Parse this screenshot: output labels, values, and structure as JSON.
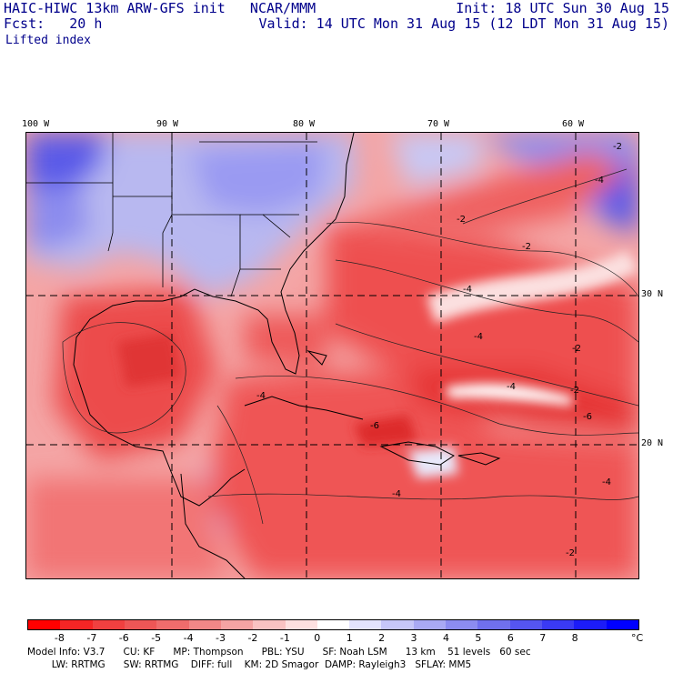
{
  "header": {
    "line1_left": "HAIC-HIWC 13km ARW-GFS init   NCAR/MMM",
    "line1_right": "Init: 18 UTC Sun 30 Aug 15",
    "line2_left": "Fcst:   20 h",
    "line2_right": "Valid: 14 UTC Mon 31 Aug 15 (12 LDT Mon 31 Aug 15)",
    "field": "Lifted index"
  },
  "map": {
    "lon_labels": [
      "100 W",
      "90 W",
      "80 W",
      "70 W",
      "60 W"
    ],
    "lat_labels": [
      "30 N",
      "20 N"
    ],
    "contour_labels": [
      "-2",
      "-2",
      "-4",
      "-2",
      "-4",
      "-4",
      "-6",
      "-4",
      "-2",
      "-4",
      "-6",
      "-4",
      "-2",
      "-4",
      "-2"
    ]
  },
  "colorbar": {
    "colors": [
      "#ff0000",
      "#f52525",
      "#f04040",
      "#ee5656",
      "#ef6c6c",
      "#f28787",
      "#f5a3a3",
      "#f9c2c2",
      "#fde0e0",
      "#ffffff",
      "#e3e3fd",
      "#c6c6f9",
      "#a9a9f4",
      "#8c8cf0",
      "#7070ee",
      "#5555f0",
      "#3a3af4",
      "#1c1cf8",
      "#0000ff"
    ],
    "ticks": [
      "-8",
      "-7",
      "-6",
      "-5",
      "-4",
      "-3",
      "-2",
      "-1",
      "0",
      "1",
      "2",
      "3",
      "4",
      "5",
      "6",
      "7",
      "8"
    ],
    "unit": "°C"
  },
  "footer": {
    "line1": "Model Info: V3.7      CU: KF      MP: Thompson      PBL: YSU      SF: Noah LSM      13 km    51 levels   60 sec",
    "line2": "        LW: RRTMG      SW: RRTMG    DIFF: full    KM: 2D Smagor  DAMP: Rayleigh3   SFLAY: MM5"
  }
}
